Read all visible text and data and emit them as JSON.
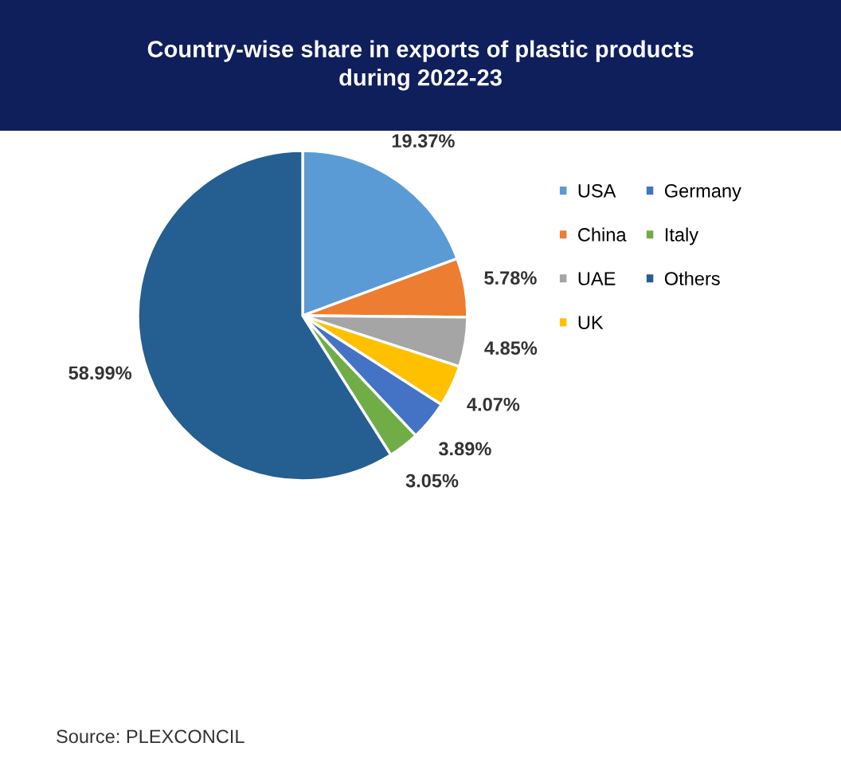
{
  "chart_data": {
    "type": "pie",
    "title": "Country-wise share in exports of plastic products\nduring 2022-23",
    "categories": [
      "USA",
      "China",
      "UAE",
      "UK",
      "Germany",
      "Italy",
      "Others"
    ],
    "values": [
      19.37,
      5.78,
      4.85,
      4.07,
      3.89,
      3.05,
      58.99
    ],
    "colors": [
      "#5b9bd5",
      "#ed7d31",
      "#a5a5a5",
      "#ffc000",
      "#4472c4",
      "#70ad47",
      "#255e91"
    ],
    "value_labels": [
      "19.37%",
      "5.78%",
      "4.85%",
      "4.07%",
      "3.89%",
      "3.05%",
      "58.99%"
    ],
    "legend": "right",
    "annotations": [
      "Source: PLEXCONCIL"
    ]
  }
}
